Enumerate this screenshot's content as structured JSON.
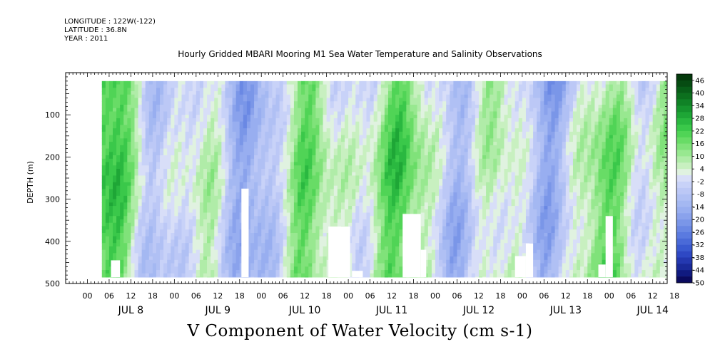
{
  "header": {
    "longitude": "LONGITUDE : 122W(-122)",
    "latitude": "LATITUDE : 36.8N",
    "year": "YEAR : 2011"
  },
  "chart_data": {
    "type": "heatmap",
    "title": "Hourly Gridded MBARI Mooring M1 Sea Water Temperature and Salinity Observations",
    "xlabel": "V Component of Water Velocity (cm s-1)",
    "ylabel": "DEPTH (m)",
    "x_unit": "hours since JUL 8 00",
    "xlim": [
      -6,
      160
    ],
    "ylim": [
      500,
      0
    ],
    "data_x_range": [
      4,
      160
    ],
    "data_depth_range": [
      20,
      485
    ],
    "y_ticks": [
      100,
      200,
      300,
      400,
      500
    ],
    "hour_ticks": [
      "00",
      "06",
      "12",
      "18",
      "00",
      "06",
      "12",
      "18",
      "00",
      "06",
      "12",
      "18",
      "00",
      "06",
      "12",
      "18",
      "00",
      "06",
      "12",
      "18",
      "00",
      "06",
      "12",
      "18",
      "00",
      "06",
      "12",
      "18"
    ],
    "day_labels": [
      "JUL  8",
      "JUL  9",
      "JUL 10",
      "JUL 11",
      "JUL 12",
      "JUL 13",
      "JUL 14"
    ],
    "colorbar": {
      "labels": [
        "46",
        "40",
        "34",
        "28",
        "22",
        "16",
        "10",
        "4",
        "-2",
        "-8",
        "-14",
        "-20",
        "-26",
        "-32",
        "-38",
        "-44",
        "-50"
      ],
      "levels": [
        -50,
        -47,
        -44,
        -41,
        -38,
        -35,
        -32,
        -29,
        -26,
        -23,
        -20,
        -17,
        -14,
        -11,
        -8,
        -5,
        -2,
        1,
        4,
        7,
        10,
        13,
        16,
        19,
        22,
        25,
        28,
        31,
        34,
        37,
        40,
        43,
        46,
        49
      ],
      "colors": [
        "#0a0a5e",
        "#101a80",
        "#1a2a9a",
        "#2438b0",
        "#2e48c4",
        "#3a5ad0",
        "#4a6ad8",
        "#5a7ae0",
        "#6a88e4",
        "#7a96e8",
        "#8aa2ec",
        "#98aef0",
        "#a4b8f2",
        "#b0c0f4",
        "#bcc8f6",
        "#c8d2f8",
        "#d8def8",
        "#e0f2e0",
        "#c8f0c0",
        "#b0eca8",
        "#98e890",
        "#80e27a",
        "#68dc66",
        "#50d456",
        "#3ac84a",
        "#2ab840",
        "#1ea636",
        "#16942e",
        "#108226",
        "#0c701e",
        "#085e18",
        "#064c12",
        "#043a0c"
      ]
    },
    "gaps": [
      {
        "x0": 6.5,
        "x1": 9,
        "depth0": 445,
        "depth1": 485
      },
      {
        "x0": 42.5,
        "x1": 44.5,
        "depth0": 275,
        "depth1": 485
      },
      {
        "x0": 66.5,
        "x1": 72.5,
        "depth0": 365,
        "depth1": 485
      },
      {
        "x0": 73,
        "x1": 76,
        "depth0": 470,
        "depth1": 485
      },
      {
        "x0": 87,
        "x1": 92,
        "depth0": 335,
        "depth1": 485
      },
      {
        "x0": 92,
        "x1": 93.5,
        "depth0": 420,
        "depth1": 485
      },
      {
        "x0": 118,
        "x1": 121,
        "depth0": 435,
        "depth1": 485
      },
      {
        "x0": 121,
        "x1": 123,
        "depth0": 405,
        "depth1": 485
      },
      {
        "x0": 141,
        "x1": 143,
        "depth0": 455,
        "depth1": 485
      },
      {
        "x0": 143,
        "x1": 145,
        "depth0": 340,
        "depth1": 485
      }
    ]
  }
}
